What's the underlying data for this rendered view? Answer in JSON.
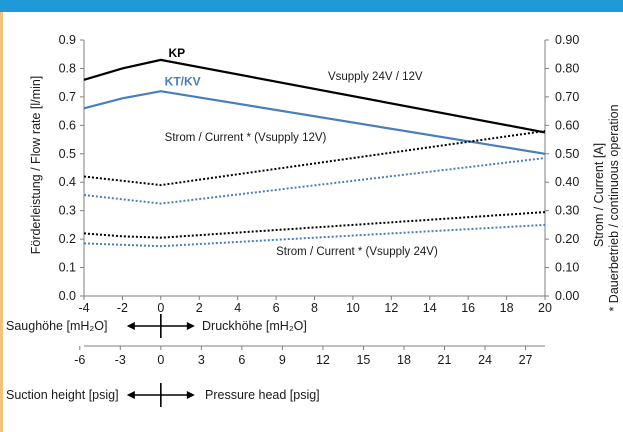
{
  "chart_data": {
    "type": "line",
    "x": [
      -4,
      -2,
      0,
      20
    ],
    "xlim": [
      -4,
      20
    ],
    "x_ticks": [
      "-4",
      "-2",
      "0",
      "2",
      "4",
      "6",
      "8",
      "10",
      "12",
      "14",
      "16",
      "18",
      "20"
    ],
    "ylim_left": [
      0,
      0.9
    ],
    "y_left_ticks": [
      "0.0",
      "0.1",
      "0.2",
      "0.3",
      "0.4",
      "0.5",
      "0.6",
      "0.7",
      "0.8",
      "0.9"
    ],
    "ylim_right": [
      0,
      0.9
    ],
    "y_right_ticks": [
      "0.00",
      "0.10",
      "0.20",
      "0.30",
      "0.40",
      "0.50",
      "0.60",
      "0.70",
      "0.80",
      "0.90"
    ],
    "ylabel_left": "Förderleistung / Flow rate [l/min]",
    "ylabel_right": "Strom / Current [A]",
    "ylabel_right2": "* Dauerbetrieb / continuous operation",
    "grid": false,
    "series": [
      {
        "name": "KP",
        "axis": "left",
        "color": "#000000",
        "style": "solid",
        "x": [
          -4,
          -2,
          0,
          20
        ],
        "values": [
          0.76,
          0.8,
          0.83,
          0.575
        ]
      },
      {
        "name": "KT/KV",
        "axis": "left",
        "color": "#4a7ebb",
        "style": "solid",
        "x": [
          -4,
          -2,
          0,
          20
        ],
        "values": [
          0.66,
          0.695,
          0.72,
          0.5
        ]
      },
      {
        "name": "",
        "axis": "right",
        "color": "#000000",
        "style": "dotted",
        "x": [
          -4,
          -2,
          0,
          20
        ],
        "values": [
          0.42,
          0.405,
          0.39,
          0.58
        ]
      },
      {
        "name": "",
        "axis": "right",
        "color": "#4a7ebb",
        "style": "dotted",
        "x": [
          -4,
          -2,
          0,
          20
        ],
        "values": [
          0.355,
          0.34,
          0.325,
          0.485
        ]
      },
      {
        "name": "",
        "axis": "right",
        "color": "#000000",
        "style": "dotted",
        "x": [
          -4,
          -2,
          0,
          20
        ],
        "values": [
          0.22,
          0.21,
          0.205,
          0.295
        ]
      },
      {
        "name": "",
        "axis": "right",
        "color": "#4a7ebb",
        "style": "dotted",
        "x": [
          -4,
          -2,
          0,
          20
        ],
        "values": [
          0.185,
          0.18,
          0.175,
          0.25
        ]
      }
    ],
    "annotations": [
      {
        "text": "KP",
        "x": 0.4,
        "y": 0.84,
        "color": "#000000"
      },
      {
        "text": "KT/KV",
        "x": 0.2,
        "y": 0.74,
        "color": "#4a7ebb"
      },
      {
        "text": "Vsupply 24V / 12V",
        "x": 8.7,
        "y": 0.76,
        "color": "#1a1a1a"
      },
      {
        "text": "Strom / Current * (Vsupply 12V)",
        "x": 0.2,
        "y": 0.545,
        "color": "#1a1a1a"
      },
      {
        "text": "Strom / Current * (Vsupply 24V)",
        "x": 6.0,
        "y": 0.145,
        "color": "#1a1a1a"
      }
    ],
    "secondary_axis_1": {
      "left_label": "Saughöhe [mH₂O]",
      "right_label": "Druckhöhe [mH₂O]"
    },
    "secondary_axis_2": {
      "ticks": [
        "-6",
        "-3",
        "0",
        "3",
        "6",
        "9",
        "12",
        "15",
        "18",
        "21",
        "24",
        "27"
      ],
      "tick_values": [
        -6,
        -3,
        0,
        3,
        6,
        9,
        12,
        15,
        18,
        21,
        24,
        27
      ],
      "units_per_main": 1.422,
      "left_label": "Suction height [psig]",
      "right_label": "Pressure head [psig]"
    }
  }
}
